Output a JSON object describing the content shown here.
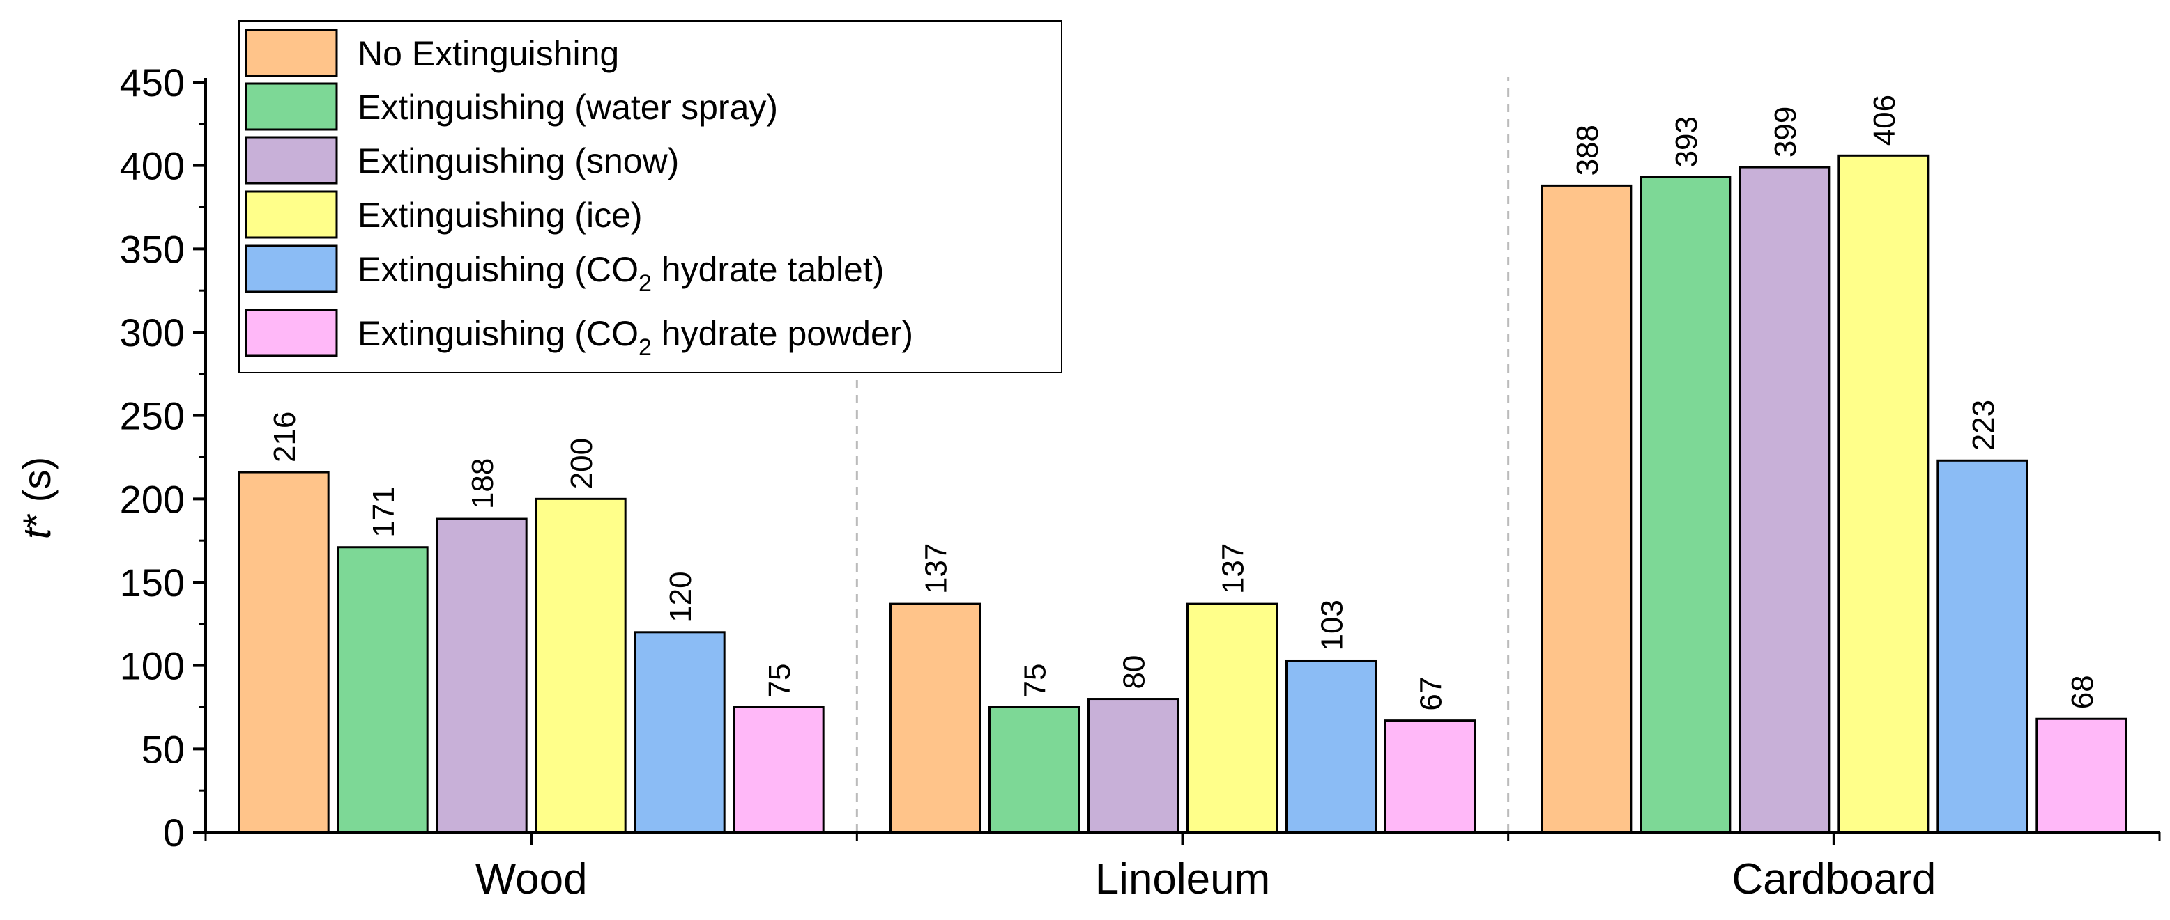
{
  "chart_data": {
    "type": "bar",
    "categories": [
      "Wood",
      "Linoleum",
      "Cardboard"
    ],
    "ylabel_italic": "t",
    "ylabel_rest": "* (s)",
    "ylim": [
      0,
      450
    ],
    "yticks": [
      0,
      50,
      100,
      150,
      200,
      250,
      300,
      350,
      400,
      450
    ],
    "grid": false,
    "legend_position": "top-left",
    "series": [
      {
        "name": "No Extinguishing",
        "name_parts": [
          "No Extinguishing"
        ],
        "color": "#FFC48A",
        "values": [
          216,
          137,
          388
        ]
      },
      {
        "name": "Extinguishing (water spray)",
        "name_parts": [
          "Extinguishing (water spray)"
        ],
        "color": "#7DD896",
        "values": [
          171,
          75,
          393
        ]
      },
      {
        "name": "Extinguishing (snow)",
        "name_parts": [
          "Extinguishing (snow)"
        ],
        "color": "#C8B0D8",
        "values": [
          188,
          80,
          399
        ]
      },
      {
        "name": "Extinguishing (ice)",
        "name_parts": [
          "Extinguishing (ice)"
        ],
        "color": "#FFFF8A",
        "values": [
          200,
          137,
          406
        ]
      },
      {
        "name": "Extinguishing (CO2 hydrate tablet)",
        "name_parts": [
          "Extinguishing (CO",
          "2",
          " hydrate tablet)"
        ],
        "color": "#8BBCF5",
        "values": [
          120,
          103,
          223
        ]
      },
      {
        "name": "Extinguishing (CO2 hydrate powder)",
        "name_parts": [
          "Extinguishing (CO",
          "2",
          " hydrate powder)"
        ],
        "color": "#FFB8F8",
        "values": [
          75,
          67,
          68
        ]
      }
    ]
  }
}
